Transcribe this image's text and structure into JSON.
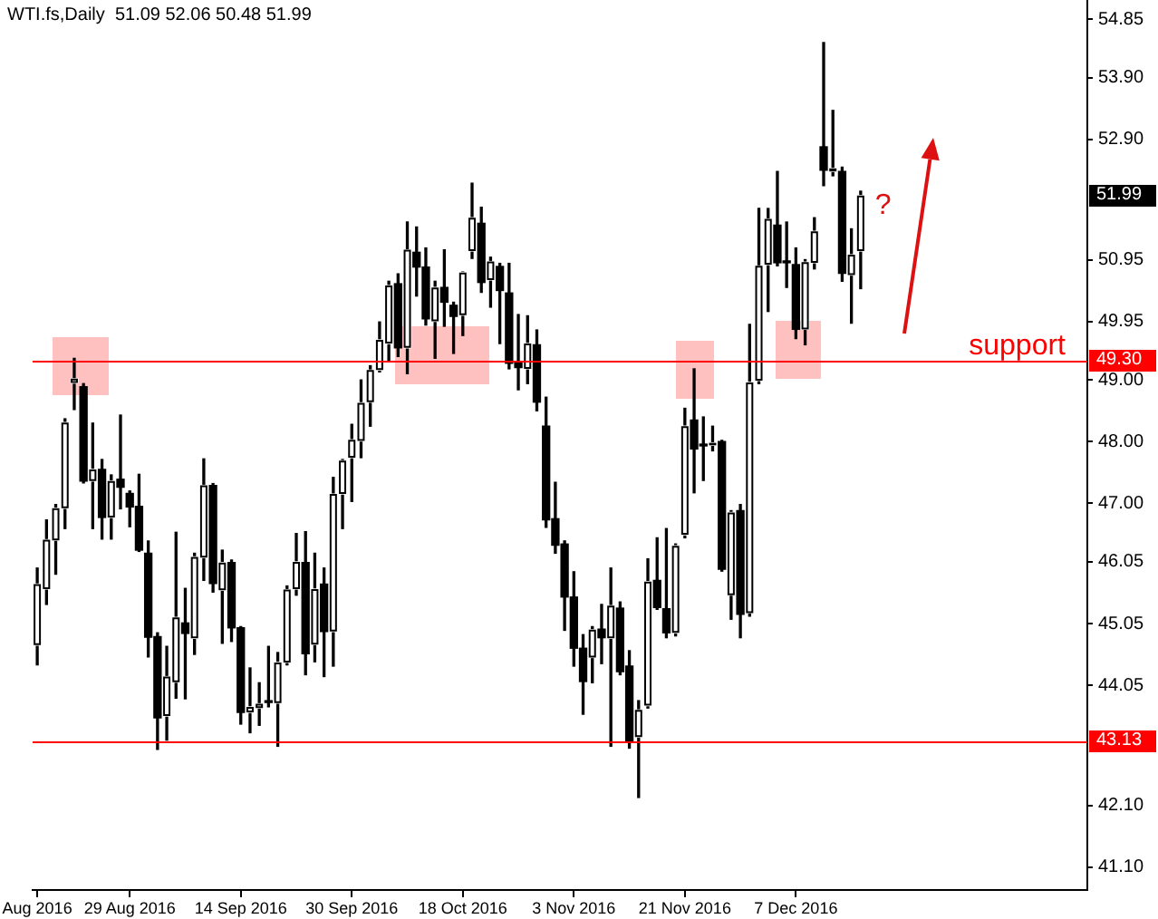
{
  "chart_data": {
    "type": "candlestick",
    "title": "WTI.fs,Daily  51.09 52.06 50.48 51.99",
    "categories": [
      "Aug 2016",
      null,
      null,
      null,
      null,
      null,
      null,
      null,
      null,
      null,
      "29 Aug 2016",
      null,
      null,
      null,
      null,
      null,
      null,
      null,
      null,
      null,
      null,
      null,
      "14 Sep 2016",
      null,
      null,
      null,
      null,
      null,
      null,
      null,
      null,
      null,
      null,
      null,
      "30 Sep 2016",
      null,
      null,
      null,
      null,
      null,
      null,
      null,
      null,
      null,
      null,
      null,
      "18 Oct 2016",
      null,
      null,
      null,
      null,
      null,
      null,
      null,
      null,
      null,
      null,
      null,
      "3 Nov 2016",
      null,
      null,
      null,
      null,
      null,
      null,
      null,
      null,
      null,
      null,
      null,
      "21 Nov 2016",
      null,
      null,
      null,
      null,
      null,
      null,
      null,
      null,
      null,
      null,
      null,
      "7 Dec 2016",
      null,
      null,
      null,
      null,
      null,
      null,
      null,
      null,
      null,
      null,
      null,
      null,
      null,
      null,
      null,
      null,
      null,
      null,
      null,
      null,
      null,
      null,
      null,
      null,
      null,
      null,
      null,
      null,
      null,
      null,
      null
    ],
    "ohlc": [
      [
        44.7,
        45.95,
        44.38,
        45.69
      ],
      [
        45.61,
        46.73,
        45.36,
        46.41
      ],
      [
        46.4,
        46.98,
        45.85,
        46.92
      ],
      [
        46.92,
        48.37,
        46.59,
        48.31
      ],
      [
        48.95,
        49.35,
        48.52,
        49.02
      ],
      [
        48.89,
        48.94,
        47.33,
        47.36
      ],
      [
        47.36,
        48.3,
        46.59,
        47.55
      ],
      [
        47.55,
        47.71,
        46.42,
        46.77
      ],
      [
        46.77,
        47.46,
        46.42,
        47.36
      ],
      [
        47.39,
        48.43,
        46.91,
        47.26
      ],
      [
        47.16,
        47.2,
        46.62,
        46.94
      ],
      [
        46.95,
        47.47,
        46.22,
        46.24
      ],
      [
        46.19,
        46.39,
        44.51,
        44.83
      ],
      [
        44.84,
        44.9,
        43.01,
        43.52
      ],
      [
        43.55,
        44.68,
        43.16,
        44.19
      ],
      [
        44.1,
        46.53,
        43.84,
        45.15
      ],
      [
        45.06,
        45.62,
        43.83,
        44.89
      ],
      [
        44.81,
        46.19,
        44.55,
        46.13
      ],
      [
        46.12,
        47.72,
        45.75,
        47.29
      ],
      [
        47.29,
        47.32,
        45.56,
        45.7
      ],
      [
        45.59,
        46.24,
        44.73,
        46.04
      ],
      [
        46.04,
        46.08,
        44.76,
        44.98
      ],
      [
        44.98,
        45.0,
        43.42,
        43.61
      ],
      [
        43.61,
        44.33,
        43.28,
        43.7
      ],
      [
        43.68,
        44.09,
        43.4,
        43.75
      ],
      [
        43.77,
        44.68,
        43.7,
        43.77
      ],
      [
        43.76,
        44.58,
        43.06,
        44.42
      ],
      [
        44.42,
        45.66,
        44.38,
        45.6
      ],
      [
        45.61,
        46.51,
        45.51,
        46.05
      ],
      [
        46.04,
        46.54,
        44.22,
        44.56
      ],
      [
        44.71,
        46.19,
        44.43,
        45.61
      ],
      [
        45.69,
        45.95,
        44.19,
        44.92
      ],
      [
        44.92,
        47.42,
        44.36,
        47.15
      ],
      [
        47.15,
        47.71,
        46.59,
        47.69
      ],
      [
        47.74,
        48.28,
        47.03,
        48.03
      ],
      [
        48.01,
        49.0,
        47.74,
        48.63
      ],
      [
        48.64,
        49.23,
        48.25,
        49.16
      ],
      [
        49.16,
        49.94,
        49.13,
        49.65
      ],
      [
        49.59,
        50.6,
        49.3,
        50.53
      ],
      [
        50.56,
        50.72,
        49.38,
        49.52
      ],
      [
        49.52,
        51.56,
        49.1,
        51.11
      ],
      [
        51.07,
        51.48,
        50.36,
        50.83
      ],
      [
        50.83,
        51.14,
        49.89,
        49.99
      ],
      [
        49.95,
        50.6,
        49.35,
        50.5
      ],
      [
        50.5,
        51.11,
        49.87,
        50.26
      ],
      [
        50.21,
        50.26,
        49.43,
        50.03
      ],
      [
        50.05,
        50.75,
        49.72,
        50.74
      ],
      [
        51.09,
        52.19,
        50.97,
        51.63
      ],
      [
        51.54,
        51.8,
        50.42,
        50.58
      ],
      [
        50.62,
        50.99,
        50.18,
        50.92
      ],
      [
        50.84,
        50.89,
        49.59,
        50.45
      ],
      [
        50.41,
        50.89,
        49.18,
        49.27
      ],
      [
        49.28,
        50.06,
        48.84,
        49.2
      ],
      [
        49.18,
        50.04,
        48.94,
        49.59
      ],
      [
        49.57,
        49.81,
        48.5,
        48.64
      ],
      [
        48.25,
        48.72,
        46.61,
        46.73
      ],
      [
        46.75,
        47.34,
        46.19,
        46.32
      ],
      [
        46.34,
        46.39,
        44.94,
        45.48
      ],
      [
        45.48,
        45.89,
        44.36,
        44.65
      ],
      [
        44.65,
        44.87,
        43.58,
        44.11
      ],
      [
        44.5,
        45.0,
        44.09,
        44.95
      ],
      [
        44.96,
        45.36,
        44.4,
        44.82
      ],
      [
        44.81,
        45.95,
        43.06,
        45.34
      ],
      [
        45.3,
        45.4,
        44.22,
        44.27
      ],
      [
        44.36,
        44.61,
        43.03,
        43.13
      ],
      [
        43.21,
        43.8,
        42.23,
        43.65
      ],
      [
        43.72,
        46.1,
        43.68,
        45.73
      ],
      [
        45.75,
        46.44,
        45.28,
        45.31
      ],
      [
        45.29,
        46.59,
        44.82,
        44.9
      ],
      [
        44.9,
        46.34,
        44.85,
        46.31
      ],
      [
        46.49,
        48.54,
        46.44,
        48.25
      ],
      [
        48.35,
        49.18,
        47.17,
        47.88
      ],
      [
        47.93,
        48.4,
        47.37,
        47.93
      ],
      [
        47.94,
        48.25,
        47.85,
        47.98
      ],
      [
        48.0,
        48.02,
        45.9,
        45.93
      ],
      [
        45.51,
        46.88,
        45.12,
        46.85
      ],
      [
        46.88,
        46.98,
        44.82,
        45.2
      ],
      [
        45.22,
        49.9,
        45.17,
        48.96
      ],
      [
        48.99,
        51.78,
        48.94,
        50.85
      ],
      [
        50.87,
        51.78,
        50.11,
        51.61
      ],
      [
        51.51,
        52.38,
        50.85,
        50.9
      ],
      [
        50.9,
        51.56,
        50.5,
        50.9
      ],
      [
        50.87,
        51.14,
        49.67,
        49.82
      ],
      [
        49.82,
        50.95,
        49.57,
        50.91
      ],
      [
        50.9,
        51.63,
        50.8,
        51.41
      ],
      [
        52.78,
        54.47,
        52.15,
        52.4
      ],
      [
        52.38,
        53.37,
        52.31,
        52.43
      ],
      [
        52.38,
        52.45,
        50.6,
        50.73
      ],
      [
        50.7,
        51.45,
        49.92,
        51.03
      ],
      [
        51.09,
        52.06,
        50.48,
        51.99
      ],
      null,
      null,
      null,
      null,
      null,
      null,
      null,
      null,
      null,
      null,
      null,
      null,
      null,
      null,
      null,
      null,
      null,
      null,
      null,
      null,
      null,
      null,
      null,
      null
    ],
    "color": "#000000",
    "colors": [
      "#ffffff",
      "#ffffff",
      "#ffffff",
      "#ffffff",
      "#ffffff",
      "#000000",
      "#ffffff",
      "#000000",
      "#ffffff",
      "#000000",
      "#000000",
      "#000000",
      "#000000",
      "#000000",
      "#ffffff",
      "#ffffff",
      "#000000",
      "#ffffff",
      "#ffffff",
      "#000000",
      "#ffffff",
      "#000000",
      "#000000",
      "#ffffff",
      "#ffffff",
      "#000000",
      "#ffffff",
      "#ffffff",
      "#ffffff",
      "#000000",
      "#ffffff",
      "#000000",
      "#ffffff",
      "#ffffff",
      "#ffffff",
      "#ffffff",
      "#ffffff",
      "#ffffff",
      "#ffffff",
      "#000000",
      "#ffffff",
      "#000000",
      "#000000",
      "#ffffff",
      "#000000",
      "#000000",
      "#ffffff",
      "#ffffff",
      "#000000",
      "#ffffff",
      "#000000",
      "#000000",
      "#000000",
      "#ffffff",
      "#000000",
      "#000000",
      "#000000",
      "#000000",
      "#000000",
      "#000000",
      "#ffffff",
      "#000000",
      "#ffffff",
      "#000000",
      "#000000",
      "#ffffff",
      "#ffffff",
      "#000000",
      "#000000",
      "#ffffff",
      "#ffffff",
      "#000000",
      "#000000",
      "#ffffff",
      "#000000",
      "#ffffff",
      "#000000",
      "#ffffff",
      "#ffffff",
      "#ffffff",
      "#000000",
      "#000000",
      "#000000",
      "#ffffff",
      "#ffffff",
      "#000000",
      "#ffffff",
      "#000000",
      "#ffffff",
      "#ffffff",
      null,
      null,
      null,
      null,
      null,
      null,
      null,
      null,
      null,
      null,
      null,
      null,
      null,
      null,
      null,
      null,
      null,
      null,
      null,
      null,
      null,
      null,
      null,
      null
    ],
    "ylim": [
      40.73,
      55.16
    ],
    "yticks": [
      {
        "value": 54.85,
        "label": "54.85"
      },
      {
        "value": 53.9,
        "label": "53.90"
      },
      {
        "value": 52.9,
        "label": "52.90"
      },
      {
        "value": 50.95,
        "label": "50.95"
      },
      {
        "value": 49.95,
        "label": "49.95"
      },
      {
        "value": 49,
        "label": "49.00"
      },
      {
        "value": 48,
        "label": "48.00"
      },
      {
        "value": 47,
        "label": "47.00"
      },
      {
        "value": 46.05,
        "label": "46.05"
      },
      {
        "value": 45.05,
        "label": "45.05"
      },
      {
        "value": 44.05,
        "label": "44.05"
      },
      {
        "value": 42.1,
        "label": "42.10"
      },
      {
        "value": 41.1,
        "label": "41.10"
      }
    ],
    "ref_lines": [
      {
        "axis": "y",
        "value": 49.3,
        "label": "support",
        "color": "#ff0000"
      },
      {
        "axis": "y",
        "value": 43.13,
        "color": "#ff0000"
      }
    ],
    "annotations": [
      "?",
      {
        "text": "51.99",
        "y": 51.99
      },
      {
        "text": "49.30",
        "y": 49.3
      },
      {
        "text": "43.13",
        "y": 43.13
      }
    ]
  }
}
